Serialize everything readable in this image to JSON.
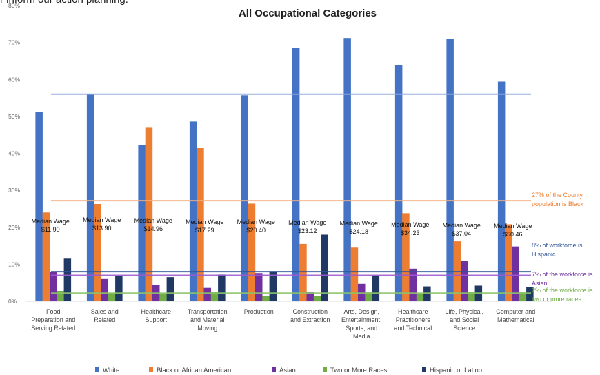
{
  "header": {
    "fragment_text": "r inform our action planning."
  },
  "chart_data": {
    "type": "bar",
    "title": "All Occupational Categories",
    "xlabel": "",
    "ylabel": "",
    "ylim": [
      0,
      80
    ],
    "y_ticks": [
      "0%",
      "10%",
      "20%",
      "30%",
      "40%",
      "50%",
      "60%",
      "70%",
      "80%"
    ],
    "grid": false,
    "legend_position": "bottom",
    "categories": [
      [
        "Food",
        "Preparation and",
        "Serving Related"
      ],
      [
        "Sales and",
        "Related"
      ],
      [
        "Healthcare",
        "Support"
      ],
      [
        "Transportation",
        "and Material",
        "Moving"
      ],
      [
        "Production"
      ],
      [
        "Construction",
        "and Extraction"
      ],
      [
        "Arts, Design,",
        "Entertainment,",
        "Sports, and",
        "Media"
      ],
      [
        "Healthcare",
        "Practitioners",
        "and Technical"
      ],
      [
        "Life, Physical,",
        "and Social",
        "Science"
      ],
      [
        "Computer and",
        "Mathematical"
      ]
    ],
    "series": [
      {
        "name": "White",
        "color": "#4472C4",
        "values": [
          51.2,
          56.1,
          42.3,
          48.6,
          55.7,
          68.5,
          71.2,
          63.8,
          70.9,
          59.4
        ]
      },
      {
        "name": "Black or African American",
        "color": "#ED7D31",
        "values": [
          24.0,
          26.3,
          47.1,
          41.5,
          26.4,
          15.5,
          14.5,
          23.8,
          16.2,
          20.8
        ]
      },
      {
        "name": "Asian",
        "color": "#7030A0",
        "values": [
          8.0,
          6.0,
          4.4,
          3.6,
          7.6,
          2.4,
          4.7,
          8.8,
          10.9,
          14.8
        ]
      },
      {
        "name": "Two or More Races",
        "color": "#70AD47",
        "values": [
          2.8,
          2.3,
          2.1,
          2.5,
          1.5,
          1.5,
          2.4,
          2.0,
          2.6,
          2.4
        ]
      },
      {
        "name": "Hispanic or Latino",
        "color": "#1F3864",
        "values": [
          11.7,
          6.8,
          6.5,
          7.2,
          8.1,
          18.0,
          7.0,
          4.0,
          4.2,
          3.9
        ]
      }
    ],
    "median_wage_label": "Median Wage",
    "median_wages": [
      "$11.90",
      "$13.90",
      "$14.96",
      "$17.29",
      "$20.40",
      "$23.12",
      "$24.18",
      "$34.23",
      "$37.04",
      "$50.46"
    ],
    "reference_lines": [
      {
        "value": 56.0,
        "color": "#8EA9DB",
        "text_lines": []
      },
      {
        "value": 27.2,
        "color": "#F4B183",
        "text_lines": [
          "27% of the County",
          "population is Black"
        ]
      },
      {
        "value": 8.0,
        "color": "#2F5597",
        "text_lines": [
          "8% of workforce is",
          "Hispanic"
        ]
      },
      {
        "value": 7.0,
        "color": "#9E5BD0",
        "text_lines": [
          "7% of the workforce is",
          "Asian"
        ]
      },
      {
        "value": 2.2,
        "color": "#8CC66A",
        "text_lines": [
          "2% of the workforce is",
          "two or more races"
        ]
      }
    ]
  }
}
